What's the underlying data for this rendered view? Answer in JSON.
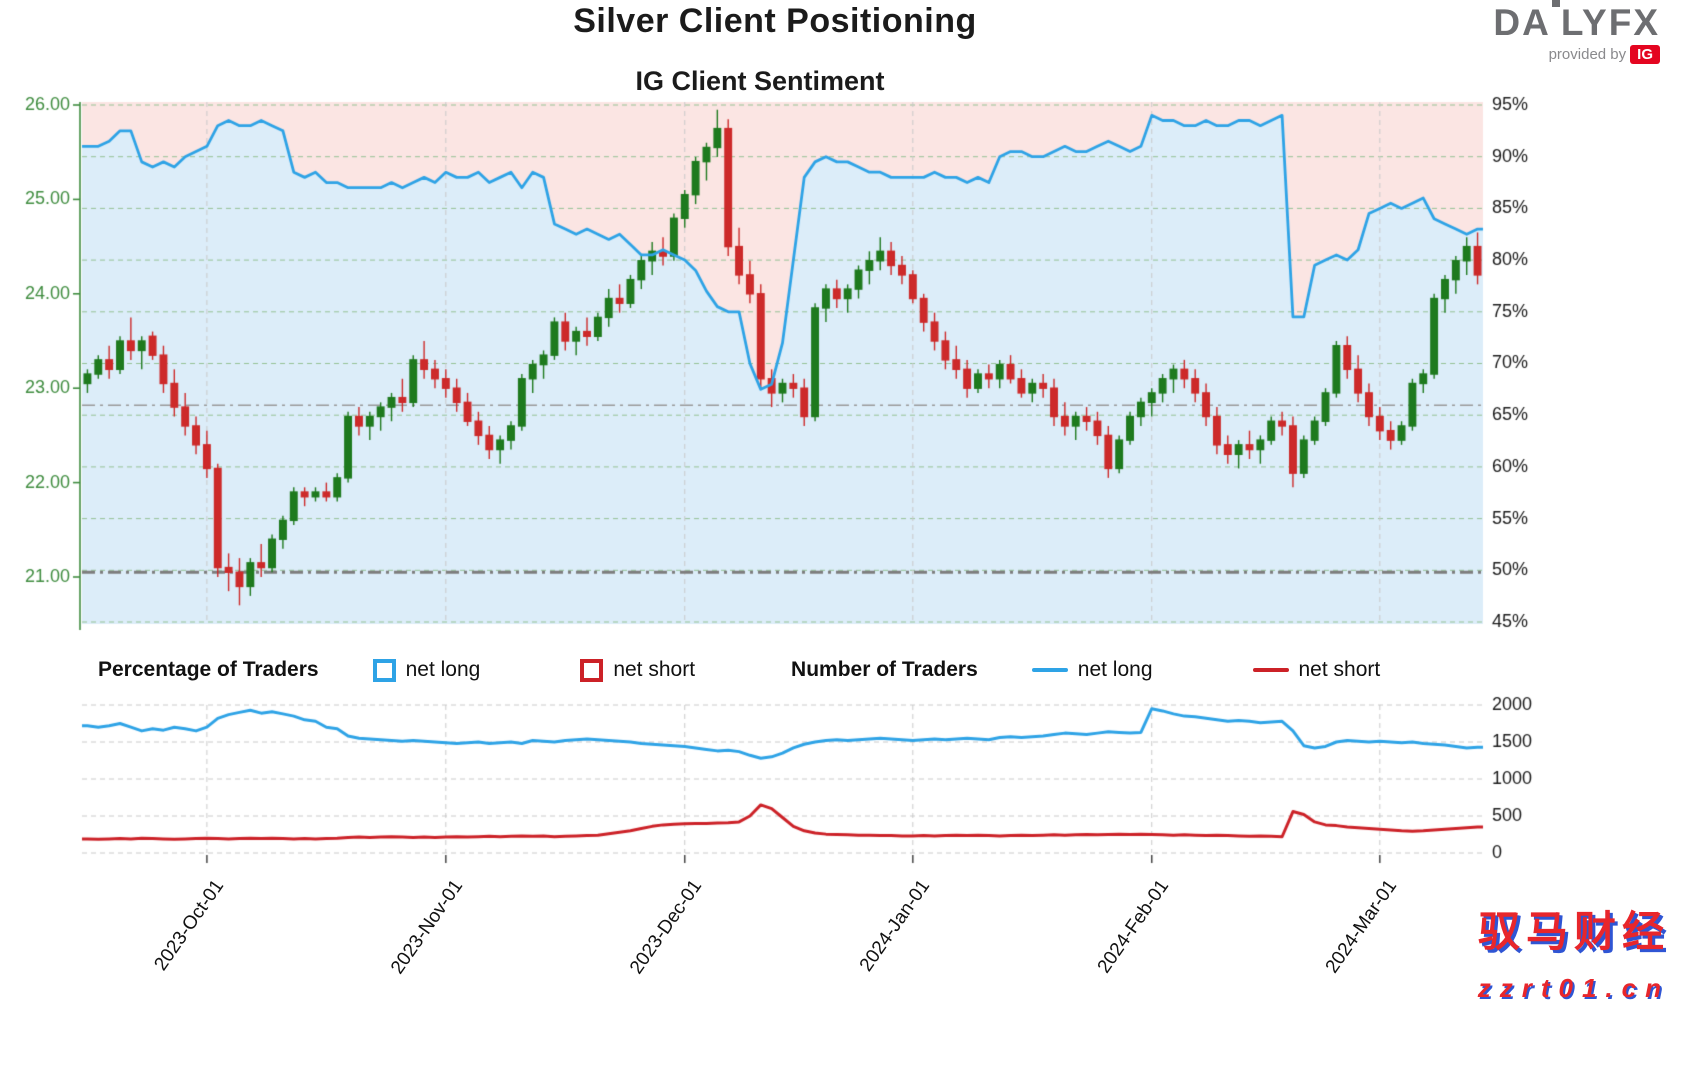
{
  "title": "Silver Client Positioning",
  "subtitle": "IG Client Sentiment",
  "logo": {
    "part1": "DA",
    "part2": "LYFX",
    "provided_by": "provided by",
    "ig": "IG"
  },
  "legend": {
    "pct_label": "Percentage of Traders",
    "pct_net_long": "net long",
    "pct_net_short": "net short",
    "num_label": "Number of Traders",
    "num_net_long": "net long",
    "num_net_short": "net short"
  },
  "watermark": {
    "line1": "驭马财经",
    "line2": "zzrt01.cn"
  },
  "colors": {
    "net_long_blue": "#2ea3e6",
    "net_short_red": "#cc2127",
    "bull_green": "#1e7a1e",
    "bear_red": "#cd2a2a",
    "axis_green": "#3f8c3f",
    "grid_green": "#94c294",
    "grid_grey": "#c9c9c9",
    "bg_above_line": "#fbe5e3",
    "bg_below_line": "#dcedf9"
  },
  "chart_data": [
    {
      "type": "candlestick+line",
      "title": "IG Client Sentiment",
      "left_axis": {
        "ticks": [
          "26.00",
          "25.00",
          "24.00",
          "23.00",
          "22.00",
          "21.00"
        ],
        "min": 21.0,
        "max": 26.0
      },
      "right_axis": {
        "ticks": [
          "95%",
          "90%",
          "85%",
          "80%",
          "75%",
          "70%",
          "65%",
          "60%",
          "55%",
          "50%",
          "45%"
        ],
        "min": 45,
        "max": 95
      },
      "x_ticks": [
        {
          "label": "2023-Oct-01",
          "index": 11
        },
        {
          "label": "2023-Nov-01",
          "index": 33
        },
        {
          "label": "2023-Dec-01",
          "index": 55
        },
        {
          "label": "2024-Jan-01",
          "index": 76
        },
        {
          "label": "2024-Feb-01",
          "index": 98
        },
        {
          "label": "2024-Mar-01",
          "index": 119
        }
      ],
      "reference_lines": [
        {
          "value": 21.05,
          "width": 3,
          "color": "#7d7d7d"
        },
        {
          "value": 22.82,
          "width": 1.5,
          "color": "#9a9a9a"
        }
      ],
      "candles": [
        [
          23.05,
          23.2,
          22.95,
          23.15
        ],
        [
          23.15,
          23.35,
          23.1,
          23.3
        ],
        [
          23.3,
          23.45,
          23.1,
          23.2
        ],
        [
          23.2,
          23.55,
          23.15,
          23.5
        ],
        [
          23.5,
          23.75,
          23.3,
          23.4
        ],
        [
          23.4,
          23.55,
          23.2,
          23.5
        ],
        [
          23.55,
          23.6,
          23.3,
          23.35
        ],
        [
          23.35,
          23.45,
          22.95,
          23.05
        ],
        [
          23.05,
          23.2,
          22.7,
          22.8
        ],
        [
          22.8,
          22.95,
          22.5,
          22.6
        ],
        [
          22.6,
          22.7,
          22.3,
          22.4
        ],
        [
          22.4,
          22.55,
          22.05,
          22.15
        ],
        [
          22.15,
          22.2,
          21.0,
          21.1
        ],
        [
          21.1,
          21.25,
          20.85,
          21.05
        ],
        [
          21.05,
          21.2,
          20.7,
          20.9
        ],
        [
          20.9,
          21.2,
          20.8,
          21.15
        ],
        [
          21.15,
          21.35,
          21.0,
          21.1
        ],
        [
          21.1,
          21.45,
          21.05,
          21.4
        ],
        [
          21.4,
          21.65,
          21.3,
          21.6
        ],
        [
          21.6,
          21.95,
          21.55,
          21.9
        ],
        [
          21.9,
          21.95,
          21.75,
          21.85
        ],
        [
          21.85,
          21.95,
          21.8,
          21.9
        ],
        [
          21.9,
          22.0,
          21.8,
          21.85
        ],
        [
          21.85,
          22.1,
          21.8,
          22.05
        ],
        [
          22.05,
          22.75,
          22.0,
          22.7
        ],
        [
          22.7,
          22.8,
          22.5,
          22.6
        ],
        [
          22.6,
          22.75,
          22.45,
          22.7
        ],
        [
          22.7,
          22.85,
          22.55,
          22.8
        ],
        [
          22.8,
          22.95,
          22.65,
          22.9
        ],
        [
          22.9,
          23.1,
          22.75,
          22.85
        ],
        [
          22.85,
          23.35,
          22.8,
          23.3
        ],
        [
          23.3,
          23.5,
          23.1,
          23.2
        ],
        [
          23.2,
          23.3,
          23.0,
          23.1
        ],
        [
          23.1,
          23.2,
          22.9,
          23.0
        ],
        [
          23.0,
          23.1,
          22.75,
          22.85
        ],
        [
          22.85,
          22.95,
          22.6,
          22.65
        ],
        [
          22.65,
          22.75,
          22.4,
          22.5
        ],
        [
          22.5,
          22.6,
          22.25,
          22.35
        ],
        [
          22.35,
          22.5,
          22.2,
          22.45
        ],
        [
          22.45,
          22.65,
          22.35,
          22.6
        ],
        [
          22.6,
          23.15,
          22.55,
          23.1
        ],
        [
          23.1,
          23.3,
          22.95,
          23.25
        ],
        [
          23.25,
          23.4,
          23.1,
          23.35
        ],
        [
          23.35,
          23.75,
          23.3,
          23.7
        ],
        [
          23.7,
          23.8,
          23.4,
          23.5
        ],
        [
          23.5,
          23.65,
          23.35,
          23.6
        ],
        [
          23.6,
          23.75,
          23.45,
          23.55
        ],
        [
          23.55,
          23.8,
          23.5,
          23.75
        ],
        [
          23.75,
          24.05,
          23.65,
          23.95
        ],
        [
          23.95,
          24.1,
          23.8,
          23.9
        ],
        [
          23.9,
          24.2,
          23.85,
          24.15
        ],
        [
          24.15,
          24.4,
          24.05,
          24.35
        ],
        [
          24.35,
          24.55,
          24.2,
          24.45
        ],
        [
          24.45,
          24.6,
          24.3,
          24.4
        ],
        [
          24.4,
          24.85,
          24.35,
          24.8
        ],
        [
          24.8,
          25.1,
          24.7,
          25.05
        ],
        [
          25.05,
          25.45,
          24.95,
          25.4
        ],
        [
          25.4,
          25.6,
          25.2,
          25.55
        ],
        [
          25.55,
          25.95,
          25.45,
          25.75
        ],
        [
          25.75,
          25.85,
          24.4,
          24.5
        ],
        [
          24.5,
          24.7,
          24.1,
          24.2
        ],
        [
          24.2,
          24.35,
          23.9,
          24.0
        ],
        [
          24.0,
          24.1,
          23.0,
          23.1
        ],
        [
          23.1,
          23.2,
          22.8,
          22.95
        ],
        [
          22.95,
          23.1,
          22.85,
          23.05
        ],
        [
          23.05,
          23.15,
          22.9,
          23.0
        ],
        [
          23.0,
          23.1,
          22.6,
          22.7
        ],
        [
          22.7,
          23.9,
          22.65,
          23.85
        ],
        [
          23.85,
          24.1,
          23.7,
          24.05
        ],
        [
          24.05,
          24.15,
          23.85,
          23.95
        ],
        [
          23.95,
          24.1,
          23.8,
          24.05
        ],
        [
          24.05,
          24.3,
          23.95,
          24.25
        ],
        [
          24.25,
          24.45,
          24.1,
          24.35
        ],
        [
          24.35,
          24.6,
          24.25,
          24.45
        ],
        [
          24.45,
          24.55,
          24.2,
          24.3
        ],
        [
          24.3,
          24.4,
          24.1,
          24.2
        ],
        [
          24.2,
          24.25,
          23.9,
          23.95
        ],
        [
          23.95,
          24.0,
          23.6,
          23.7
        ],
        [
          23.7,
          23.8,
          23.4,
          23.5
        ],
        [
          23.5,
          23.6,
          23.2,
          23.3
        ],
        [
          23.3,
          23.45,
          23.1,
          23.2
        ],
        [
          23.2,
          23.3,
          22.9,
          23.0
        ],
        [
          23.0,
          23.2,
          22.95,
          23.15
        ],
        [
          23.15,
          23.25,
          23.0,
          23.1
        ],
        [
          23.1,
          23.3,
          23.0,
          23.25
        ],
        [
          23.25,
          23.35,
          23.05,
          23.1
        ],
        [
          23.1,
          23.2,
          22.9,
          22.95
        ],
        [
          22.95,
          23.1,
          22.85,
          23.05
        ],
        [
          23.05,
          23.15,
          22.9,
          23.0
        ],
        [
          23.0,
          23.1,
          22.6,
          22.7
        ],
        [
          22.7,
          22.85,
          22.5,
          22.6
        ],
        [
          22.6,
          22.75,
          22.45,
          22.7
        ],
        [
          22.7,
          22.8,
          22.55,
          22.65
        ],
        [
          22.65,
          22.75,
          22.4,
          22.5
        ],
        [
          22.5,
          22.6,
          22.05,
          22.15
        ],
        [
          22.15,
          22.5,
          22.1,
          22.45
        ],
        [
          22.45,
          22.75,
          22.4,
          22.7
        ],
        [
          22.7,
          22.9,
          22.6,
          22.85
        ],
        [
          22.85,
          23.0,
          22.7,
          22.95
        ],
        [
          22.95,
          23.15,
          22.85,
          23.1
        ],
        [
          23.1,
          23.25,
          22.95,
          23.2
        ],
        [
          23.2,
          23.3,
          23.0,
          23.1
        ],
        [
          23.1,
          23.2,
          22.85,
          22.95
        ],
        [
          22.95,
          23.05,
          22.6,
          22.7
        ],
        [
          22.7,
          22.8,
          22.3,
          22.4
        ],
        [
          22.4,
          22.5,
          22.2,
          22.3
        ],
        [
          22.3,
          22.45,
          22.15,
          22.4
        ],
        [
          22.4,
          22.55,
          22.25,
          22.35
        ],
        [
          22.35,
          22.5,
          22.2,
          22.45
        ],
        [
          22.45,
          22.7,
          22.4,
          22.65
        ],
        [
          22.65,
          22.75,
          22.5,
          22.6
        ],
        [
          22.6,
          22.7,
          21.95,
          22.1
        ],
        [
          22.1,
          22.5,
          22.05,
          22.45
        ],
        [
          22.45,
          22.7,
          22.4,
          22.65
        ],
        [
          22.65,
          23.0,
          22.6,
          22.95
        ],
        [
          22.95,
          23.5,
          22.9,
          23.45
        ],
        [
          23.45,
          23.55,
          23.1,
          23.2
        ],
        [
          23.2,
          23.35,
          22.85,
          22.95
        ],
        [
          22.95,
          23.05,
          22.6,
          22.7
        ],
        [
          22.7,
          22.8,
          22.45,
          22.55
        ],
        [
          22.55,
          22.65,
          22.35,
          22.45
        ],
        [
          22.45,
          22.65,
          22.4,
          22.6
        ],
        [
          22.6,
          23.1,
          22.55,
          23.05
        ],
        [
          23.05,
          23.2,
          22.95,
          23.15
        ],
        [
          23.15,
          24.0,
          23.1,
          23.95
        ],
        [
          23.95,
          24.2,
          23.8,
          24.15
        ],
        [
          24.15,
          24.4,
          24.0,
          24.35
        ],
        [
          24.35,
          24.6,
          24.2,
          24.5
        ],
        [
          24.5,
          24.65,
          24.1,
          24.2
        ]
      ],
      "sentiment_pct": [
        91,
        91,
        91.5,
        92.5,
        92.5,
        89.5,
        89,
        89.5,
        89,
        90,
        90.5,
        91,
        93,
        93.5,
        93,
        93,
        93.5,
        93,
        92.5,
        88.5,
        88,
        88.5,
        87.5,
        87.5,
        87,
        87,
        87,
        87,
        87.5,
        87,
        87.5,
        88,
        87.5,
        88.5,
        88,
        88,
        88.5,
        87.5,
        88,
        88.5,
        87,
        88.5,
        88,
        83.5,
        83,
        82.5,
        83,
        82.5,
        82,
        82.5,
        81.5,
        80.5,
        80.5,
        81,
        80.5,
        80,
        79,
        77,
        75.5,
        75,
        75,
        70,
        67.5,
        68,
        72,
        80,
        88,
        89.5,
        90,
        89.5,
        89.5,
        89,
        88.5,
        88.5,
        88,
        88,
        88,
        88,
        88.5,
        88,
        88,
        87.5,
        88,
        87.5,
        90,
        90.5,
        90.5,
        90,
        90,
        90.5,
        91,
        90.5,
        90.5,
        91,
        91.5,
        91,
        90.5,
        91,
        94,
        93.5,
        93.5,
        93,
        93,
        93.5,
        93,
        93,
        93.5,
        93.5,
        93,
        93.5,
        94,
        74.5,
        74.5,
        79.5,
        80,
        80.5,
        80,
        81,
        84.5,
        85,
        85.5,
        85,
        85.5,
        86,
        84,
        83.5,
        83,
        82.5,
        83
      ]
    },
    {
      "type": "line",
      "right_axis": {
        "ticks": [
          "2000",
          "1500",
          "1000",
          "500",
          "0"
        ],
        "min": 0,
        "max": 2000
      },
      "series": [
        {
          "name": "net long",
          "color": "#2ea3e6",
          "values": [
            1720,
            1700,
            1720,
            1750,
            1700,
            1650,
            1680,
            1660,
            1700,
            1680,
            1650,
            1700,
            1820,
            1870,
            1900,
            1930,
            1890,
            1910,
            1880,
            1850,
            1800,
            1780,
            1700,
            1680,
            1580,
            1550,
            1540,
            1530,
            1520,
            1510,
            1520,
            1510,
            1500,
            1490,
            1480,
            1490,
            1500,
            1480,
            1490,
            1500,
            1480,
            1520,
            1510,
            1500,
            1520,
            1530,
            1540,
            1530,
            1520,
            1510,
            1500,
            1480,
            1470,
            1460,
            1450,
            1440,
            1420,
            1400,
            1380,
            1390,
            1370,
            1320,
            1280,
            1300,
            1350,
            1420,
            1470,
            1500,
            1520,
            1530,
            1520,
            1530,
            1540,
            1550,
            1540,
            1530,
            1520,
            1530,
            1540,
            1530,
            1540,
            1550,
            1540,
            1530,
            1560,
            1570,
            1560,
            1570,
            1580,
            1600,
            1620,
            1610,
            1600,
            1620,
            1640,
            1630,
            1620,
            1630,
            1950,
            1920,
            1880,
            1850,
            1840,
            1820,
            1800,
            1780,
            1790,
            1780,
            1760,
            1770,
            1780,
            1650,
            1450,
            1420,
            1440,
            1500,
            1520,
            1510,
            1500,
            1510,
            1500,
            1490,
            1500,
            1480,
            1470,
            1460,
            1440,
            1420,
            1430
          ]
        },
        {
          "name": "net short",
          "color": "#cc2127",
          "values": [
            190,
            185,
            190,
            195,
            190,
            200,
            195,
            190,
            185,
            190,
            195,
            200,
            195,
            190,
            195,
            200,
            195,
            200,
            195,
            190,
            195,
            190,
            195,
            200,
            210,
            215,
            210,
            215,
            220,
            215,
            210,
            215,
            210,
            215,
            220,
            215,
            220,
            225,
            220,
            225,
            230,
            225,
            230,
            220,
            225,
            230,
            235,
            240,
            260,
            280,
            300,
            330,
            360,
            380,
            390,
            395,
            400,
            400,
            405,
            410,
            420,
            500,
            650,
            600,
            480,
            360,
            300,
            270,
            255,
            250,
            245,
            240,
            240,
            235,
            235,
            230,
            230,
            235,
            230,
            235,
            240,
            235,
            240,
            235,
            230,
            235,
            240,
            235,
            240,
            245,
            240,
            245,
            250,
            245,
            250,
            255,
            250,
            255,
            250,
            245,
            240,
            245,
            240,
            235,
            240,
            235,
            230,
            225,
            230,
            225,
            220,
            560,
            520,
            420,
            380,
            370,
            350,
            340,
            330,
            320,
            310,
            300,
            295,
            300,
            310,
            320,
            330,
            340,
            350
          ]
        }
      ]
    }
  ]
}
